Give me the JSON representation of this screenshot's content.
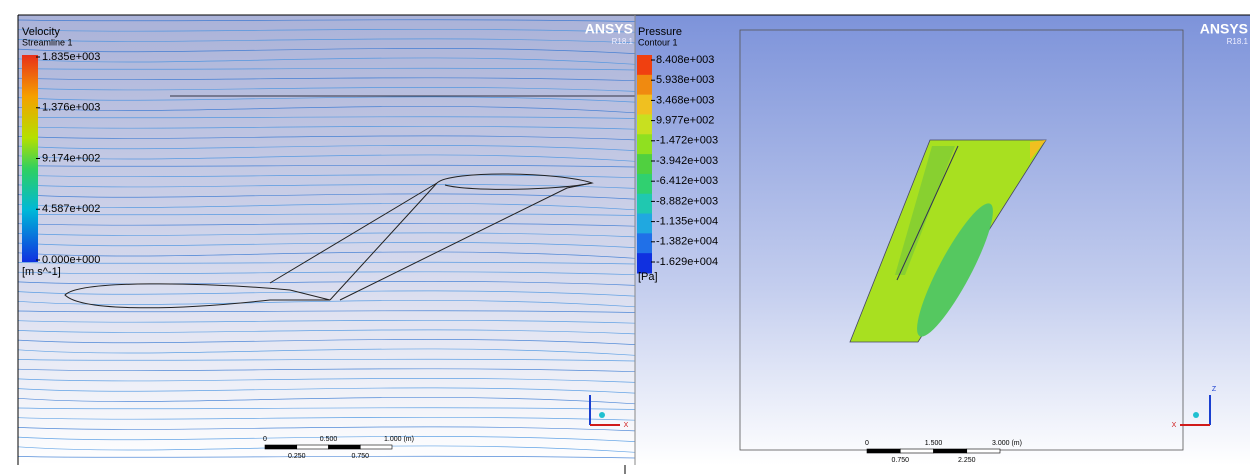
{
  "panels": [
    {
      "brand": "ANSYS",
      "version": "R18.1",
      "variable": "Velocity",
      "plot": "Streamline 1",
      "legend": [
        "1.835e+003",
        "1.376e+003",
        "9.174e+002",
        "4.587e+002",
        "0.000e+000"
      ],
      "unit": "[m s^-1]",
      "scale": {
        "top": [
          "0",
          "0.500",
          "1.000 (m)"
        ],
        "bottom": [
          "0.250",
          "0.750"
        ]
      },
      "axes": [
        "X"
      ]
    },
    {
      "brand": "ANSYS",
      "version": "R18.1",
      "variable": "Pressure",
      "plot": "Contour 1",
      "legend": [
        "8.408e+003",
        "5.938e+003",
        "3.468e+003",
        "9.977e+002",
        "-1.472e+003",
        "-3.942e+003",
        "-6.412e+003",
        "-8.882e+003",
        "-1.135e+004",
        "-1.382e+004",
        "-1.629e+004"
      ],
      "unit": "[Pa]",
      "scale": {
        "top": [
          "0",
          "1.500",
          "3.000 (m)"
        ],
        "bottom": [
          "0.750",
          "2.250"
        ]
      },
      "axes": [
        "Z",
        "X"
      ]
    }
  ]
}
